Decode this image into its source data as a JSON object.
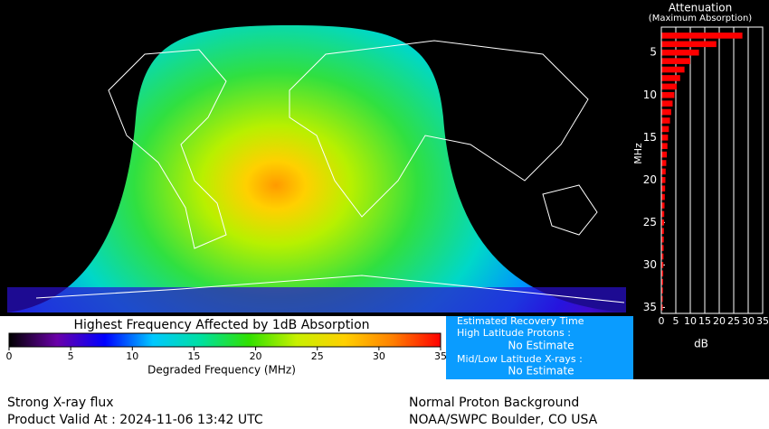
{
  "chart_data": {
    "type": "bar",
    "orientation": "horizontal",
    "title": "Attenuation",
    "subtitle": "(Maximum Absorption)",
    "xlabel": "dB",
    "ylabel": "MHz",
    "x": [
      3,
      4,
      5,
      6,
      7,
      8,
      9,
      10,
      11,
      12,
      13,
      14,
      15,
      16,
      17,
      18,
      19,
      20,
      21,
      22,
      23,
      24,
      25,
      26,
      27,
      28,
      29,
      30,
      31,
      32,
      33,
      34,
      35
    ],
    "values": [
      28,
      19,
      13,
      10,
      8,
      6.5,
      5.3,
      4.5,
      3.9,
      3.4,
      3,
      2.6,
      2.3,
      2.1,
      1.9,
      1.7,
      1.5,
      1.4,
      1.3,
      1.2,
      1.1,
      1,
      0.95,
      0.9,
      0.85,
      0.8,
      0.75,
      0.7,
      0.65,
      0.6,
      0.55,
      0.5,
      0.5
    ],
    "color": "#ff0000",
    "xlim": [
      0,
      35
    ],
    "xticks": [
      0,
      5,
      10,
      15,
      20,
      25,
      30,
      35
    ],
    "ylim": [
      2,
      35.7
    ],
    "yticks": [
      5,
      10,
      15,
      20,
      25,
      30,
      35
    ],
    "grid": true
  },
  "colorbar": {
    "title": "Highest Frequency Affected by 1dB Absorption",
    "xlabel": "Degraded Frequency (MHz)",
    "xlim": [
      0,
      35
    ],
    "xticks": [
      0,
      5,
      10,
      15,
      20,
      25,
      30,
      35
    ],
    "colors": [
      "#000000",
      "#6a00a8",
      "#0000ff",
      "#00c8ff",
      "#00e0a0",
      "#30e000",
      "#c8f000",
      "#ffd000",
      "#ff8000",
      "#ff0000"
    ]
  },
  "info_box": {
    "title": "Estimated Recovery Time",
    "high_label": "High Latitude Protons :",
    "high_value": "No Estimate",
    "mid_label": "Mid/Low Latitude X-rays :",
    "mid_value": "No Estimate"
  },
  "footer": {
    "left_1": "Strong X-ray flux",
    "left_2": "Product Valid At : 2024-11-06 13:42 UTC",
    "right_1": "Normal Proton Background",
    "right_2": "NOAA/SWPC Boulder, CO USA"
  }
}
